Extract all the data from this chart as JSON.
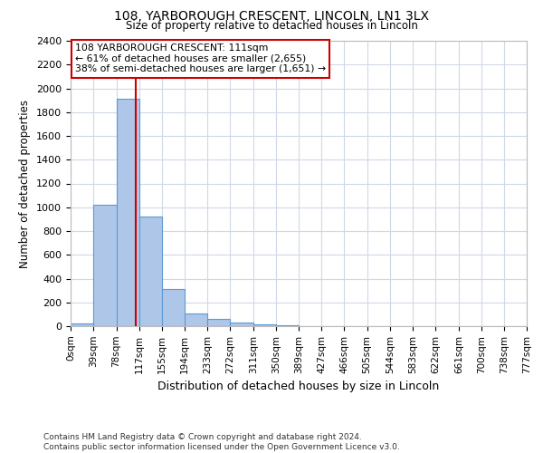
{
  "title1": "108, YARBOROUGH CRESCENT, LINCOLN, LN1 3LX",
  "title2": "Size of property relative to detached houses in Lincoln",
  "xlabel": "Distribution of detached houses by size in Lincoln",
  "ylabel": "Number of detached properties",
  "annotation_line1": "108 YARBOROUGH CRESCENT: 111sqm",
  "annotation_line2": "← 61% of detached houses are smaller (2,655)",
  "annotation_line3": "38% of semi-detached houses are larger (1,651) →",
  "property_size": 111,
  "bin_edges": [
    0,
    39,
    78,
    117,
    155,
    194,
    233,
    272,
    311,
    350,
    389,
    427,
    466,
    505,
    544,
    583,
    622,
    661,
    700,
    738,
    777
  ],
  "bin_heights": [
    20,
    1020,
    1910,
    920,
    310,
    110,
    60,
    30,
    15,
    5,
    3,
    2,
    1,
    1,
    1,
    1,
    0,
    0,
    0,
    0
  ],
  "bar_color": "#aec6e8",
  "bar_edge_color": "#5b9bd5",
  "vline_color": "#cc0000",
  "vline_x": 111,
  "ylim": [
    0,
    2400
  ],
  "yticks": [
    0,
    200,
    400,
    600,
    800,
    1000,
    1200,
    1400,
    1600,
    1800,
    2000,
    2200,
    2400
  ],
  "grid_color": "#d0d8e8",
  "annotation_box_color": "#cc0000",
  "footer_line1": "Contains HM Land Registry data © Crown copyright and database right 2024.",
  "footer_line2": "Contains public sector information licensed under the Open Government Licence v3.0."
}
